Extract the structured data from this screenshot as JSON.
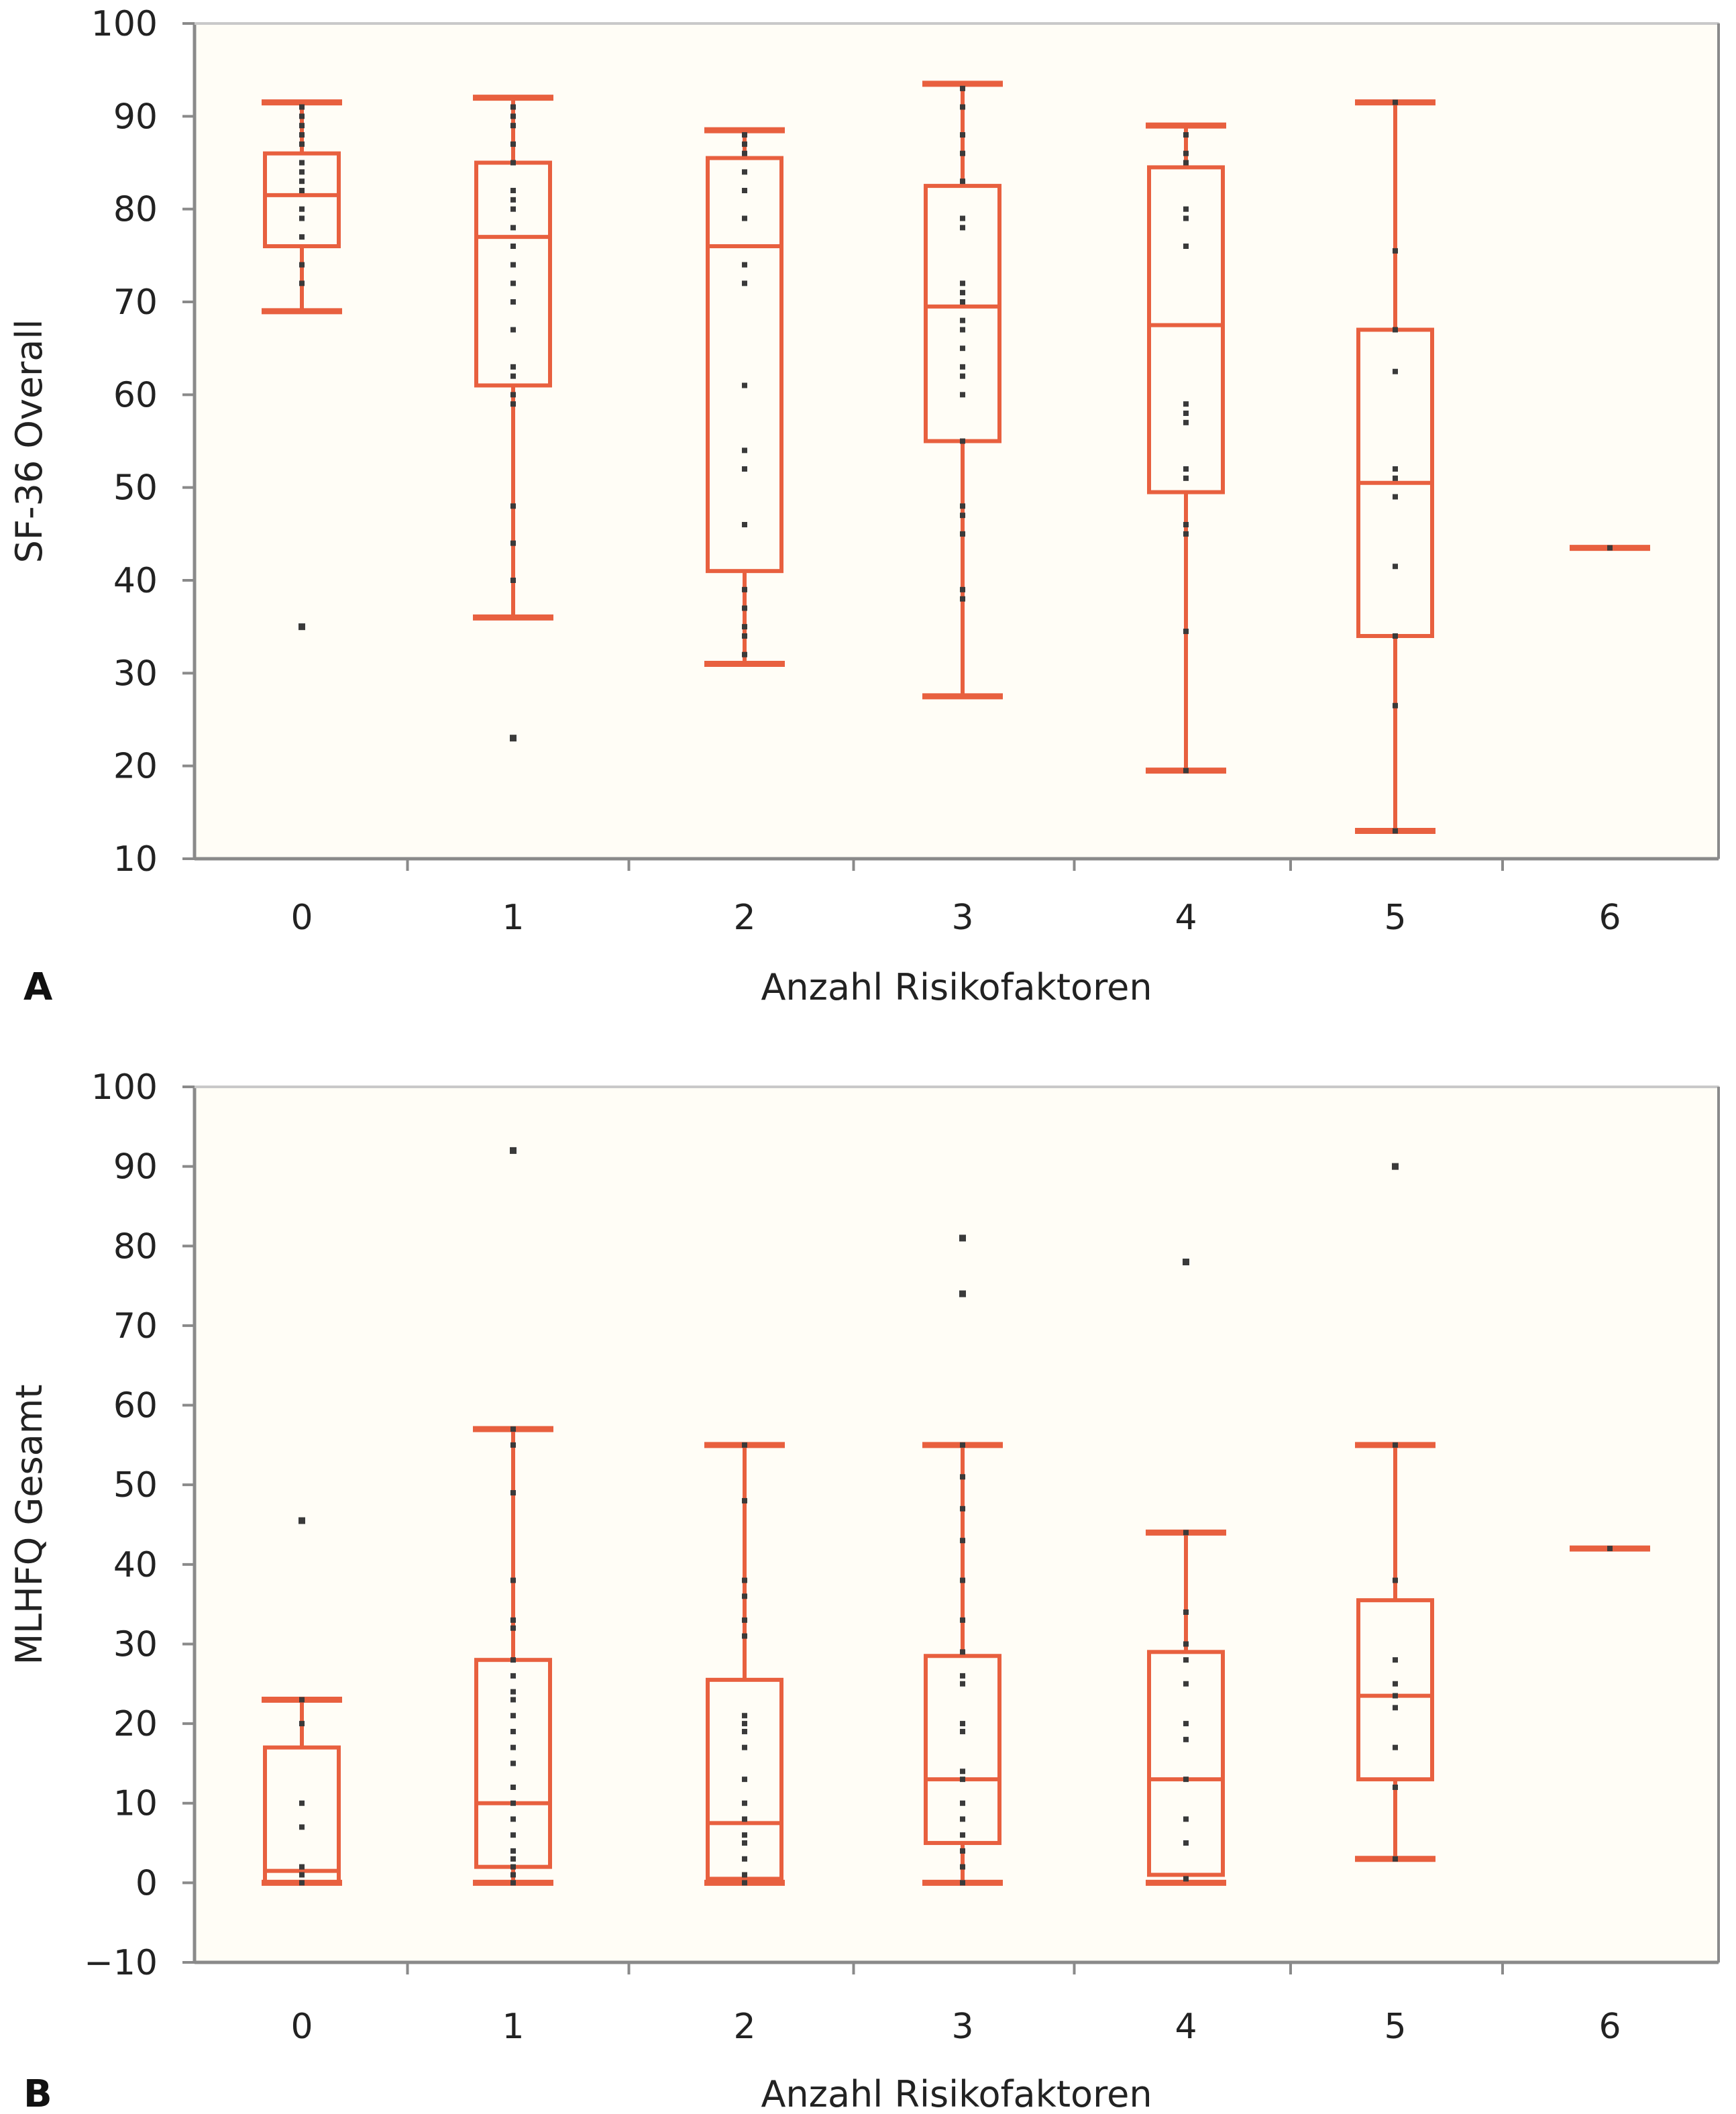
{
  "colors": {
    "box": "#e8603f",
    "whisker_cap": "#f4a27e",
    "point": "#3a3a3a",
    "frame": "#8a8a8a",
    "plot_bg": "#fffdf6"
  },
  "chart_data": [
    {
      "type": "boxplot",
      "panel_label": "A",
      "title": "",
      "xlabel": "Anzahl Risikofaktoren",
      "ylabel": "SF-36 Overall",
      "ylim": [
        10,
        100
      ],
      "yticks": [
        "10",
        "20",
        "30",
        "40",
        "50",
        "60",
        "70",
        "80",
        "90",
        "100"
      ],
      "categories": [
        "0",
        "1",
        "2",
        "3",
        "4",
        "5",
        "6"
      ],
      "boxes": [
        {
          "category": "0",
          "whisker_low": 69,
          "q1": 76,
          "median": 81.5,
          "q3": 86,
          "whisker_high": 91.5,
          "outliers": [
            35
          ],
          "points": [
            72,
            74,
            77,
            79,
            80,
            82,
            83,
            84,
            85,
            87,
            88,
            89,
            90,
            91
          ]
        },
        {
          "category": "1",
          "whisker_low": 36,
          "q1": 61,
          "median": 77,
          "q3": 85,
          "whisker_high": 92,
          "outliers": [
            23
          ],
          "points": [
            40,
            44,
            48,
            59,
            60,
            62,
            63,
            67,
            70,
            72,
            74,
            76,
            78,
            80,
            81,
            82,
            85,
            87,
            89,
            90,
            91
          ]
        },
        {
          "category": "2",
          "whisker_low": 31,
          "q1": 41,
          "median": 76,
          "q3": 85.5,
          "whisker_high": 88.5,
          "outliers": [],
          "points": [
            32,
            34,
            35,
            37,
            39,
            46,
            52,
            54,
            61,
            72,
            74,
            79,
            82,
            84,
            86,
            87,
            88
          ]
        },
        {
          "category": "3",
          "whisker_low": 27.5,
          "q1": 55,
          "median": 69.5,
          "q3": 82.5,
          "whisker_high": 93.5,
          "outliers": [],
          "points": [
            38,
            39,
            45,
            47,
            48,
            55,
            60,
            62,
            63,
            65,
            67,
            68,
            70,
            71,
            72,
            78,
            79,
            83,
            86,
            88,
            91,
            93
          ]
        },
        {
          "category": "4",
          "whisker_low": 19.5,
          "q1": 49.5,
          "median": 67.5,
          "q3": 84.5,
          "whisker_high": 89,
          "outliers": [],
          "points": [
            19.5,
            34.5,
            45,
            46,
            51,
            52,
            57,
            58,
            59,
            76,
            79,
            80,
            85,
            86,
            88
          ]
        },
        {
          "category": "5",
          "whisker_low": 13,
          "q1": 34,
          "median": 50.5,
          "q3": 67,
          "whisker_high": 91.5,
          "outliers": [],
          "points": [
            13,
            26.5,
            34,
            41.5,
            49,
            51,
            52,
            62.5,
            67,
            75.5,
            91.5
          ]
        },
        {
          "category": "6",
          "whisker_low": 43.5,
          "q1": 43.5,
          "median": 43.5,
          "q3": 43.5,
          "whisker_high": 43.5,
          "outliers": [],
          "points": [
            43.5
          ]
        }
      ]
    },
    {
      "type": "boxplot",
      "panel_label": "B",
      "title": "",
      "xlabel": "Anzahl Risikofaktoren",
      "ylabel": "MLHFQ Gesamt",
      "ylim": [
        -10,
        100
      ],
      "yticks": [
        "−10",
        "0",
        "10",
        "20",
        "30",
        "40",
        "50",
        "60",
        "70",
        "80",
        "90",
        "100"
      ],
      "categories": [
        "0",
        "1",
        "2",
        "3",
        "4",
        "5",
        "6"
      ],
      "boxes": [
        {
          "category": "0",
          "whisker_low": 0,
          "q1": 0,
          "median": 1.5,
          "q3": 17,
          "whisker_high": 23,
          "outliers": [
            45.5
          ],
          "points": [
            0,
            1,
            2,
            7,
            10,
            20,
            23
          ]
        },
        {
          "category": "1",
          "whisker_low": 0,
          "q1": 2,
          "median": 10,
          "q3": 28,
          "whisker_high": 57,
          "outliers": [
            92
          ],
          "points": [
            0,
            1,
            2,
            3,
            4,
            6,
            8,
            10,
            12,
            15,
            17,
            19,
            21,
            23,
            24,
            26,
            28,
            32,
            33,
            38,
            49,
            55,
            57
          ]
        },
        {
          "category": "2",
          "whisker_low": 0,
          "q1": 0.5,
          "median": 7.5,
          "q3": 25.5,
          "whisker_high": 55,
          "outliers": [],
          "points": [
            0,
            1,
            3,
            5,
            6,
            8,
            10,
            13,
            17,
            19,
            20,
            21,
            31,
            33,
            36,
            38,
            48,
            55
          ]
        },
        {
          "category": "3",
          "whisker_low": 0,
          "q1": 5,
          "median": 13,
          "q3": 28.5,
          "whisker_high": 55,
          "outliers": [
            74,
            81
          ],
          "points": [
            0,
            2,
            4,
            6,
            8,
            10,
            13,
            14,
            19,
            20,
            25,
            26,
            29,
            33,
            38,
            43,
            47,
            51,
            55
          ]
        },
        {
          "category": "4",
          "whisker_low": 0,
          "q1": 1,
          "median": 13,
          "q3": 29,
          "whisker_high": 44,
          "outliers": [
            78
          ],
          "points": [
            0.5,
            5,
            8,
            13,
            18,
            20,
            25,
            28,
            30,
            34,
            44
          ]
        },
        {
          "category": "5",
          "whisker_low": 3,
          "q1": 13,
          "median": 23.5,
          "q3": 35.5,
          "whisker_high": 55,
          "outliers": [
            90
          ],
          "points": [
            3,
            12,
            17,
            22,
            23.5,
            25,
            28,
            38,
            55
          ]
        },
        {
          "category": "6",
          "whisker_low": 42,
          "q1": 42,
          "median": 42,
          "q3": 42,
          "whisker_high": 42,
          "outliers": [],
          "points": [
            42
          ]
        }
      ]
    }
  ]
}
